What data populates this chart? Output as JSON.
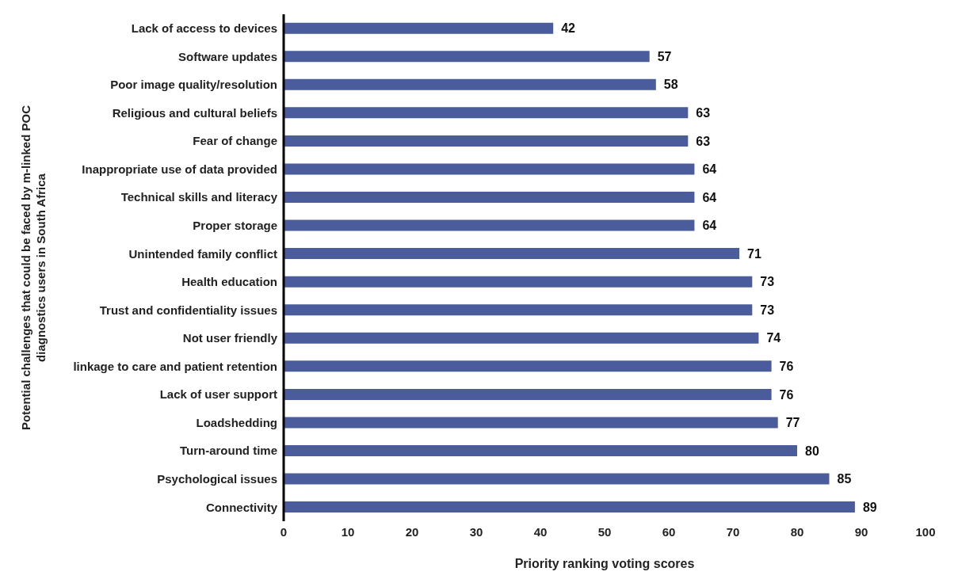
{
  "chart_data": {
    "type": "bar",
    "orientation": "horizontal",
    "xlabel": "Priority ranking voting scores",
    "ylabel": "Potential challenges that could be faced by m-linked POC diagnostics users in South Africa",
    "categories": [
      "Lack of access to devices",
      "Software updates",
      "Poor image quality/resolution",
      "Religious and cultural beliefs",
      "Fear of change",
      "Inappropriate use of data provided",
      "Technical skills and literacy",
      "Proper storage",
      "Unintended family conflict",
      "Health education",
      "Trust and confidentiality issues",
      "Not user friendly",
      "linkage to care and patient retention",
      "Lack of user support",
      "Loadshedding",
      "Turn-around time",
      "Psychological issues",
      "Connectivity"
    ],
    "values": [
      42,
      57,
      58,
      63,
      63,
      64,
      64,
      64,
      71,
      73,
      73,
      74,
      76,
      76,
      77,
      80,
      85,
      89
    ],
    "color": "#4a5c9c",
    "xlim": [
      0,
      100
    ],
    "xticks": [
      0,
      10,
      20,
      30,
      40,
      50,
      60,
      70,
      80,
      90,
      100
    ],
    "data_labels": true,
    "grid": false
  }
}
